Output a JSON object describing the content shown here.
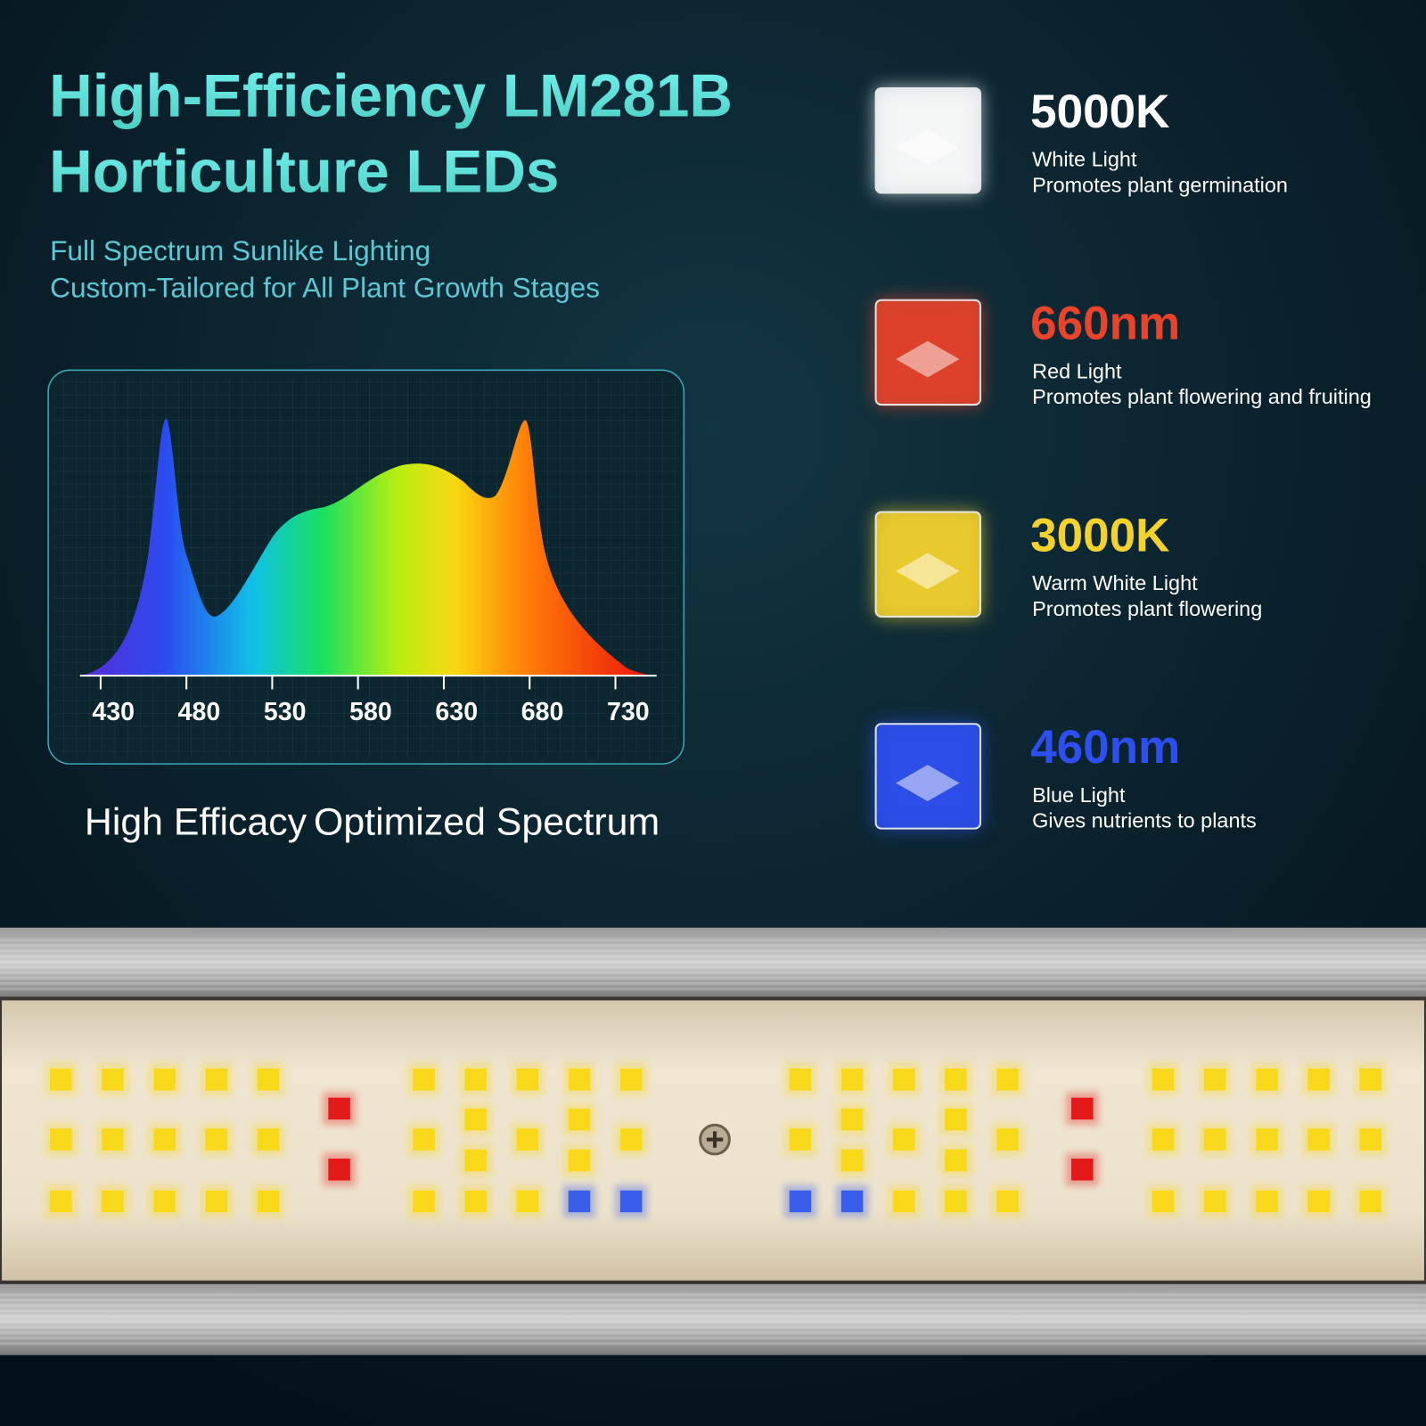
{
  "header": {
    "title_line1": "High-Efficiency LM281B",
    "title_line2": "Horticulture LEDs",
    "subtitle_line1": "Full Spectrum Sunlike Lighting",
    "subtitle_line2": "Custom-Tailored for All Plant Growth Stages"
  },
  "spectrum": {
    "xlim": [
      418,
      754
    ],
    "xticks": [
      430,
      480,
      530,
      580,
      630,
      680,
      730
    ]
  },
  "captions": [
    "High Efficacy",
    "Optimized Spectrum"
  ],
  "lights": [
    {
      "label": "5000K",
      "color": "#ffffff",
      "name": "White Light",
      "description": "Promotes plant germination"
    },
    {
      "label": "660nm",
      "color": "#e8432b",
      "name": "Red Light",
      "description": "Promotes plant flowering and fruiting"
    },
    {
      "label": "3000K",
      "color": "#f4d22e",
      "name": "Warm White Light",
      "description": "Promotes plant flowering"
    },
    {
      "label": "460nm",
      "color": "#2e4ff0",
      "name": "Blue Light",
      "description": "Gives nutrients to plants"
    }
  ]
}
